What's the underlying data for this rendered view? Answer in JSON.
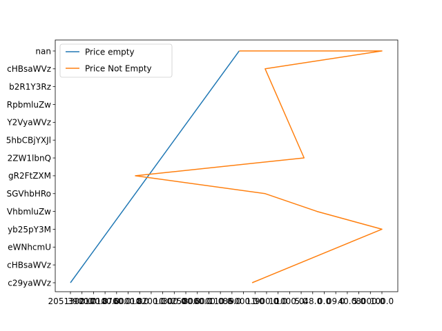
{
  "chart_data": {
    "type": "line",
    "title": "",
    "xlabel": "",
    "ylabel": "",
    "categories": [
      "c29yaWVz",
      "cHBsaWVz",
      "eWNhcmU",
      "yb25pY3M",
      "VhbmluZw",
      "SGVhbHRo",
      "gR2FtZXM",
      "2ZW1lbnQ",
      "5hbCBjYXJl",
      "Y2VyaWVz",
      "RpbmluZw",
      "b2R1Y3Rz",
      "cHBsaWVz",
      "nan"
    ],
    "x_ticks": [
      "2051300.0",
      "3900.0",
      "2100.0",
      "7100.0",
      "8700.0",
      "6000.0",
      "10.0",
      "8200.0",
      "10.0",
      "300.0",
      "2500.0",
      "8000.0",
      "6000.0",
      "110.0",
      "86.0",
      "9000.0",
      "11.0",
      "900.0",
      "10.0",
      "1000.0",
      "5.0",
      "48.0",
      "0.0",
      "09.0",
      "40.0",
      "5.0",
      "8000.0",
      "100.0"
    ],
    "series": [
      {
        "name": "Price empty",
        "color": "#1f77b4",
        "x": [
          0.0,
          13.0
        ],
        "y": [
          0,
          13
        ]
      },
      {
        "name": "Price Not Empty",
        "color": "#ff7f0e",
        "x": [
          14.0,
          24.0,
          19.0,
          15.0,
          5.0,
          18.0,
          15.0,
          24.0,
          13.0
        ],
        "y": [
          0,
          3,
          4,
          5,
          6,
          7,
          12,
          13,
          13
        ]
      }
    ],
    "legend": {
      "position": "upper-left"
    },
    "grid": false
  }
}
